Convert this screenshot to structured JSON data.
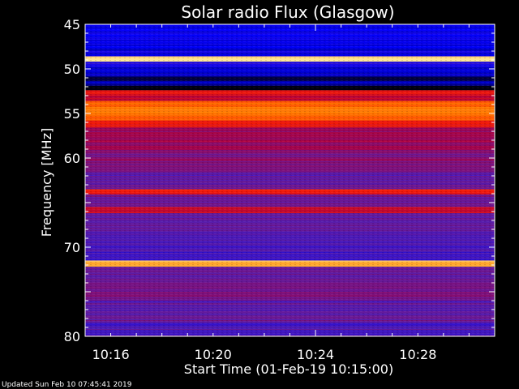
{
  "chart_data": {
    "type": "heatmap",
    "title": "Solar radio Flux (Glasgow)",
    "xlabel": "Start Time (01-Feb-19 10:15:00)",
    "ylabel": "Frequency [MHz]",
    "x_range_minutes": [
      10.25,
      10.5167
    ],
    "x_range_clock": [
      "10:15:00",
      "10:30:50"
    ],
    "x_tick_labels": [
      "10:16",
      "10:20",
      "10:24",
      "10:28"
    ],
    "x_tick_values_minutes": [
      10.2667,
      10.3333,
      10.4,
      10.4667
    ],
    "ylim": [
      45,
      80
    ],
    "y_inverted": true,
    "y_tick_labels": [
      "45",
      "50",
      "55",
      "60",
      "70",
      "80"
    ],
    "y_tick_values": [
      45,
      50,
      55,
      60,
      70,
      80
    ],
    "colormap": [
      "#000000",
      "#0000ff",
      "#5a1ea8",
      "#b0003c",
      "#ff2000",
      "#ff8a00",
      "#fff0a0"
    ],
    "intensity_bands": [
      {
        "from": 45.0,
        "to": 47.3,
        "level": 0.18
      },
      {
        "from": 47.3,
        "to": 48.6,
        "level": 0.16
      },
      {
        "from": 48.6,
        "to": 49.2,
        "level": 0.98
      },
      {
        "from": 49.2,
        "to": 49.8,
        "level": 0.22
      },
      {
        "from": 49.8,
        "to": 50.8,
        "level": 0.15
      },
      {
        "from": 50.8,
        "to": 51.4,
        "level": 0.05
      },
      {
        "from": 51.4,
        "to": 51.9,
        "level": 0.12
      },
      {
        "from": 51.9,
        "to": 52.4,
        "level": 0.02
      },
      {
        "from": 52.4,
        "to": 53.0,
        "level": 0.6
      },
      {
        "from": 53.0,
        "to": 53.6,
        "level": 0.52
      },
      {
        "from": 53.6,
        "to": 55.8,
        "level": 0.78
      },
      {
        "from": 55.8,
        "to": 56.6,
        "level": 0.62
      },
      {
        "from": 56.6,
        "to": 59.0,
        "level": 0.46
      },
      {
        "from": 59.0,
        "to": 61.5,
        "level": 0.42
      },
      {
        "from": 61.5,
        "to": 63.5,
        "level": 0.36
      },
      {
        "from": 63.5,
        "to": 64.1,
        "level": 0.62
      },
      {
        "from": 64.1,
        "to": 65.5,
        "level": 0.38
      },
      {
        "from": 65.5,
        "to": 66.2,
        "level": 0.55
      },
      {
        "from": 66.2,
        "to": 68.5,
        "level": 0.33
      },
      {
        "from": 68.5,
        "to": 71.5,
        "level": 0.3
      },
      {
        "from": 71.5,
        "to": 72.2,
        "level": 0.9
      },
      {
        "from": 72.2,
        "to": 73.8,
        "level": 0.35
      },
      {
        "from": 73.8,
        "to": 76.0,
        "level": 0.4
      },
      {
        "from": 76.0,
        "to": 78.5,
        "level": 0.34
      },
      {
        "from": 78.5,
        "to": 80.0,
        "level": 0.3
      }
    ],
    "grid": false
  },
  "footer": "Updated Sun Feb 10 07:45:41 2019"
}
